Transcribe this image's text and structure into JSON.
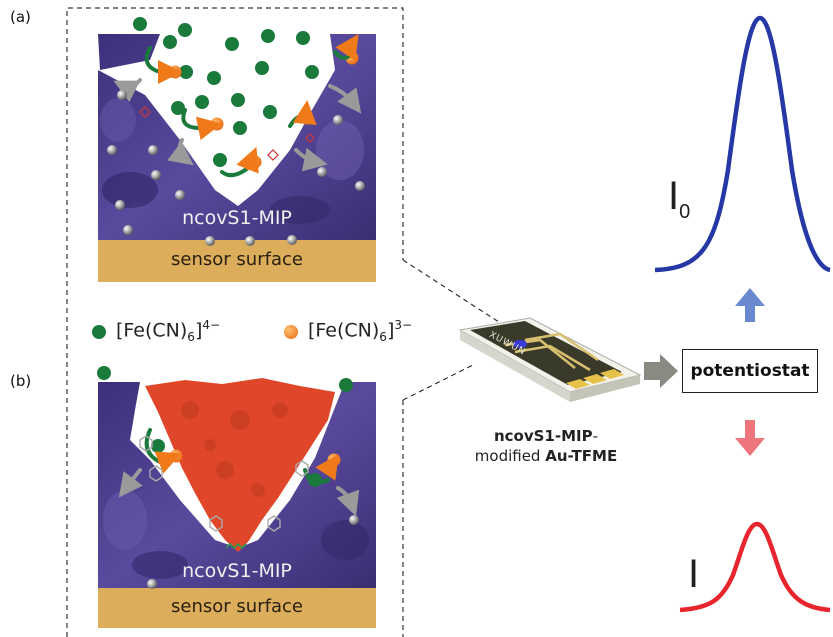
{
  "panels": {
    "a_label": "(a)",
    "b_label": "(b)",
    "mip_label": "ncovS1-MIP",
    "surface_label": "sensor surface"
  },
  "legend": {
    "ferrocyanide": {
      "text": "[Fe(CN)",
      "sub": "6",
      "sup": "4−",
      "color": "#1a7a3c"
    },
    "ferricyanide": {
      "text": "[Fe(CN)",
      "sub": "6",
      "sup": "3−",
      "color": "#f07a1a"
    }
  },
  "device": {
    "caption_bold1": "ncovS1-MIP",
    "caption_line1_suffix": "-",
    "caption_prefix2": "modified ",
    "caption_bold2": "Au-TFME",
    "chip_text": "XUWUN"
  },
  "instrument": {
    "potentiostat_label": "potentiostat"
  },
  "signals": {
    "top_label": "I",
    "top_sub": "0",
    "top_color": "#2638a6",
    "bottom_label": "I",
    "bottom_color": "#e8242c",
    "up_arrow_color": "#4f74c8",
    "down_arrow_color": "#e8535a"
  },
  "colors": {
    "polymer": "#4a3f8c",
    "surface": "#dcae5c",
    "protein": "#e0472a"
  }
}
